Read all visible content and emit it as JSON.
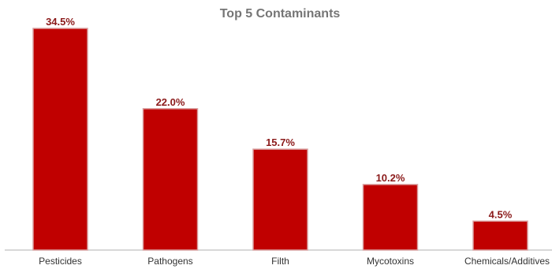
{
  "chart_data": {
    "type": "bar",
    "title": "Top 5 Contaminants",
    "categories": [
      "Pesticides",
      "Pathogens",
      "Filth",
      "Mycotoxins",
      "Chemicals/Additives"
    ],
    "values": [
      34.5,
      22.0,
      15.7,
      10.2,
      4.5
    ],
    "value_labels": [
      "34.5%",
      "22.0%",
      "15.7%",
      "10.2%",
      "4.5%"
    ],
    "ylim": [
      0,
      34.5
    ],
    "unit": "%",
    "grid": false,
    "legend": "none",
    "colors": {
      "bar": "#c00000",
      "bar_edge": "#d9a0a0",
      "value_label": "#8b1a1a",
      "title": "#757575",
      "axis": "#b0b0b0",
      "category_label": "#333333"
    }
  }
}
